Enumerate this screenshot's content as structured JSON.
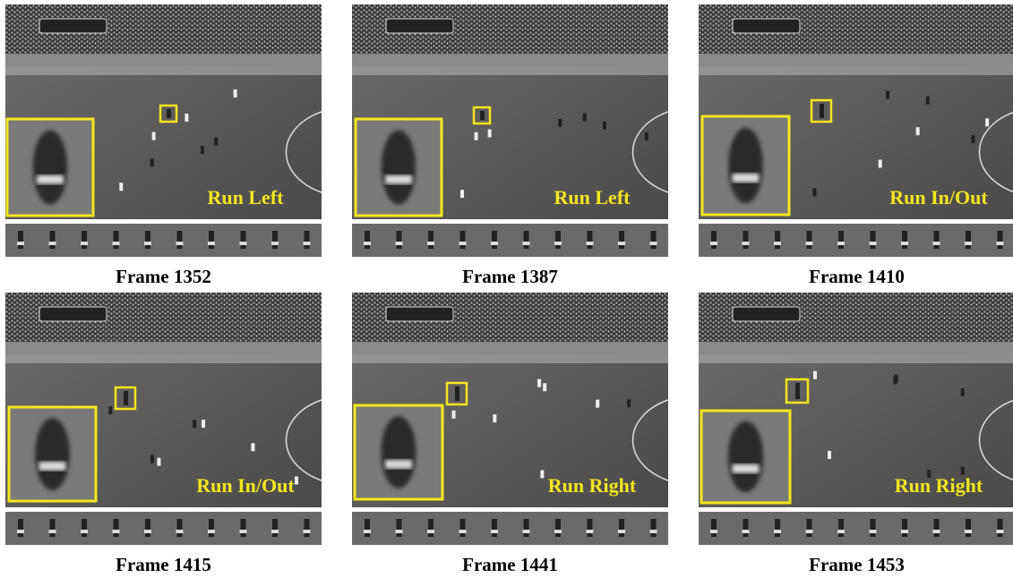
{
  "panels": [
    {
      "action": "Run Left",
      "caption": "Frame 1352"
    },
    {
      "action": "Run Left",
      "caption": "Frame 1387"
    },
    {
      "action": "Run In/Out",
      "caption": "Frame 1410"
    },
    {
      "action": "Run In/Out",
      "caption": "Frame 1415"
    },
    {
      "action": "Run Right",
      "caption": "Frame 1441"
    },
    {
      "action": "Run Right",
      "caption": "Frame 1453"
    }
  ]
}
